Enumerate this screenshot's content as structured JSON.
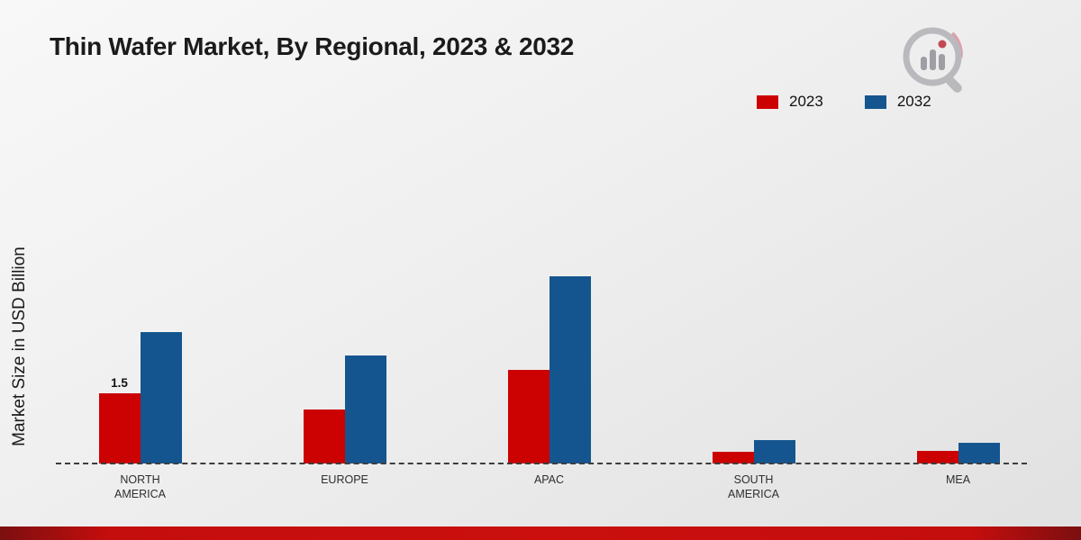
{
  "page": {
    "title": "Thin Wafer Market, By Regional, 2023 & 2032",
    "ylabel": "Market Size in USD Billion"
  },
  "legend": [
    {
      "label": "2023",
      "color": "#cc0101"
    },
    {
      "label": "2032",
      "color": "#15558f"
    }
  ],
  "chart_data": {
    "type": "bar",
    "title": "Thin Wafer Market, By Regional, 2023 & 2032",
    "xlabel": "",
    "ylabel": "Market Size in USD Billion",
    "categories": [
      "NORTH AMERICA",
      "EUROPE",
      "APAC",
      "SOUTH AMERICA",
      "MEA"
    ],
    "series": [
      {
        "name": "2023",
        "color": "#cc0101",
        "values": [
          1.5,
          1.15,
          2.0,
          0.25,
          0.27
        ]
      },
      {
        "name": "2032",
        "color": "#15558f",
        "values": [
          2.8,
          2.3,
          4.0,
          0.5,
          0.45
        ]
      }
    ],
    "ylim": [
      0,
      4.5
    ],
    "grid": false,
    "legend_position": "top-right",
    "annotations": [
      {
        "series": "2023",
        "category": "NORTH AMERICA",
        "text": "1.5"
      }
    ]
  },
  "branding": {
    "logo": "market-research-future-logo"
  }
}
